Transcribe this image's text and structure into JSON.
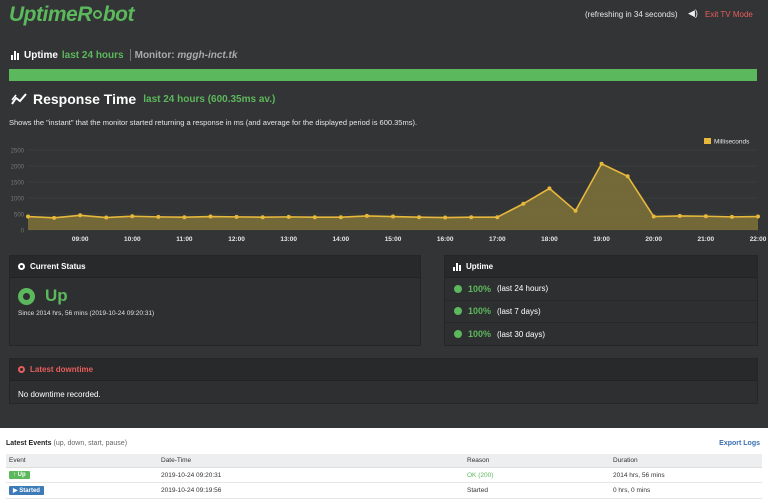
{
  "brand": {
    "part1": "Uptime",
    "part2a": "R",
    "part2b": "bot"
  },
  "header": {
    "refresh_text": "(refreshing in 34 seconds)",
    "exit_label": "Exit TV Mode"
  },
  "uptime_section": {
    "title": "Uptime",
    "range": "last 24 hours",
    "monitor_label": "Monitor:",
    "monitor_name": "mggh-inct.tk",
    "bar_color": "#5cb85c"
  },
  "response_time": {
    "title": "Response Time",
    "subtitle": "last 24 hours  (600.35ms av.)",
    "description": "Shows the \"instant\" that the monitor started returning a response in ms (and average for the displayed period is 600.35ms)."
  },
  "chart_data": {
    "type": "area",
    "legend": [
      "Milliseconds"
    ],
    "legend_position": "top-right",
    "grid": true,
    "ylim": [
      0,
      2500
    ],
    "yticks": [
      "0",
      "500",
      "1000",
      "1500",
      "2000",
      "2500"
    ],
    "xticks": [
      "09:00",
      "10:00",
      "11:00",
      "12:00",
      "13:00",
      "14:00",
      "15:00",
      "16:00",
      "17:00",
      "18:00",
      "19:00",
      "20:00",
      "21:00",
      "22:00"
    ],
    "x_hours": [
      8.0,
      8.5,
      9.0,
      9.5,
      10.0,
      10.5,
      11.0,
      11.5,
      12.0,
      12.5,
      13.0,
      13.5,
      14.0,
      14.5,
      15.0,
      15.5,
      16.0,
      16.5,
      17.0,
      17.5,
      18.0,
      18.5,
      19.0,
      19.5,
      20.0,
      20.5,
      21.0,
      21.5,
      22.0
    ],
    "series": [
      {
        "name": "Milliseconds",
        "color": "#e6b83c",
        "values": [
          420,
          380,
          460,
          390,
          430,
          410,
          400,
          420,
          410,
          400,
          410,
          400,
          400,
          440,
          420,
          400,
          390,
          400,
          400,
          820,
          1300,
          600,
          2070,
          1680,
          420,
          440,
          430,
          410,
          420
        ]
      }
    ]
  },
  "current_status": {
    "title": "Current Status",
    "state": "Up",
    "since": "Since 2014 hrs, 56 mins (2019-10-24 09:20:31)"
  },
  "uptime_panel": {
    "title": "Uptime",
    "rows": [
      {
        "pct": "100%",
        "period": "(last 24 hours)"
      },
      {
        "pct": "100%",
        "period": "(last 7 days)"
      },
      {
        "pct": "100%",
        "period": "(last 30 days)"
      }
    ]
  },
  "latest_downtime": {
    "title": "Latest downtime",
    "text": "No downtime recorded."
  },
  "events": {
    "title": "Latest Events",
    "filter": "(up, down, start, pause)",
    "export_label": "Export Logs",
    "columns": [
      "Event",
      "Date-Time",
      "Reason",
      "Duration"
    ],
    "rows": [
      {
        "event": "Up",
        "datetime": "2019-10-24 09:20:31",
        "reason": "OK (200)",
        "duration": "2014 hrs, 56 mins"
      },
      {
        "event": "Started",
        "datetime": "2019-10-24 09:19:56",
        "reason": "Started",
        "duration": "0 hrs, 0 mins"
      }
    ]
  }
}
